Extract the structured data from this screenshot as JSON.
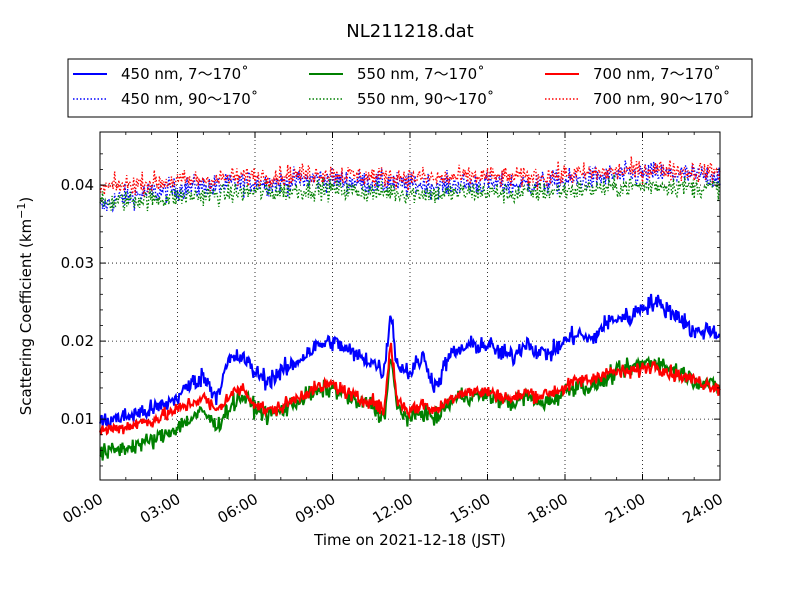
{
  "chart_data": {
    "type": "line",
    "title": "NL211218.dat",
    "xlabel": "Time on 2021-12-18 (JST)",
    "ylabel": "Scattering Coefficient (km",
    "ylabel_exponent": "−1",
    "ylabel_close": ")",
    "xlim": [
      "2021-12-18 00:00",
      "2021-12-19 00:00"
    ],
    "ylim": [
      0.0022,
      0.0468
    ],
    "x_ticks": [
      "00:00",
      "03:00",
      "06:00",
      "09:00",
      "12:00",
      "15:00",
      "18:00",
      "21:00",
      "24:00"
    ],
    "y_ticks": [
      "0.01",
      "0.02",
      "0.03",
      "0.04"
    ],
    "y_tick_values": [
      0.01,
      0.02,
      0.03,
      0.04
    ],
    "grid": true,
    "legend_position": "top, above plot",
    "x_hours": [
      0,
      0.5,
      1,
      1.5,
      2,
      2.5,
      3,
      3.5,
      4,
      4.5,
      5,
      5.5,
      6,
      6.5,
      7,
      7.5,
      8,
      8.5,
      9,
      9.5,
      10,
      10.5,
      11,
      11.25,
      11.5,
      12,
      12.5,
      13,
      13.5,
      14,
      14.5,
      15,
      15.5,
      16,
      16.5,
      17,
      17.5,
      18,
      18.5,
      19,
      19.5,
      20,
      20.5,
      21,
      21.5,
      22,
      22.5,
      23,
      23.5,
      24
    ],
    "series": [
      {
        "name": "450 nm, 7～170˚",
        "color": "#0000ff",
        "style": "solid",
        "noise": 0.0012,
        "values": [
          0.0095,
          0.01,
          0.0103,
          0.0108,
          0.0112,
          0.0118,
          0.0128,
          0.0145,
          0.0155,
          0.013,
          0.0175,
          0.018,
          0.016,
          0.015,
          0.016,
          0.017,
          0.0185,
          0.0195,
          0.02,
          0.019,
          0.018,
          0.0175,
          0.016,
          0.024,
          0.017,
          0.016,
          0.018,
          0.014,
          0.018,
          0.019,
          0.0195,
          0.0195,
          0.0185,
          0.018,
          0.02,
          0.0185,
          0.0185,
          0.02,
          0.021,
          0.02,
          0.022,
          0.023,
          0.023,
          0.0245,
          0.025,
          0.024,
          0.023,
          0.021,
          0.0215,
          0.021
        ]
      },
      {
        "name": "450 nm, 90～170˚",
        "color": "#0000ff",
        "style": "dotted",
        "noise": 0.0015,
        "values": [
          0.037,
          0.038,
          0.0385,
          0.0388,
          0.039,
          0.0392,
          0.0395,
          0.0397,
          0.0398,
          0.0398,
          0.04,
          0.0402,
          0.0405,
          0.0402,
          0.0403,
          0.0405,
          0.0407,
          0.0408,
          0.0406,
          0.0405,
          0.0404,
          0.0403,
          0.0402,
          0.0405,
          0.0401,
          0.04,
          0.0401,
          0.0399,
          0.04,
          0.0401,
          0.0402,
          0.0402,
          0.0401,
          0.04,
          0.0401,
          0.0402,
          0.0403,
          0.0405,
          0.0407,
          0.0408,
          0.041,
          0.0412,
          0.0413,
          0.0414,
          0.0415,
          0.0414,
          0.0413,
          0.0412,
          0.0412,
          0.0412
        ]
      },
      {
        "name": "550 nm, 7～170˚",
        "color": "#008000",
        "style": "solid",
        "noise": 0.0011,
        "values": [
          0.0055,
          0.006,
          0.0063,
          0.0068,
          0.0072,
          0.008,
          0.009,
          0.01,
          0.011,
          0.009,
          0.0115,
          0.013,
          0.0115,
          0.0105,
          0.011,
          0.012,
          0.013,
          0.0135,
          0.014,
          0.013,
          0.012,
          0.012,
          0.01,
          0.018,
          0.0115,
          0.01,
          0.011,
          0.01,
          0.012,
          0.013,
          0.013,
          0.013,
          0.0125,
          0.012,
          0.013,
          0.012,
          0.0125,
          0.0135,
          0.0145,
          0.014,
          0.015,
          0.016,
          0.0165,
          0.0172,
          0.0175,
          0.0165,
          0.016,
          0.015,
          0.0145,
          0.014
        ]
      },
      {
        "name": "550 nm, 90～170˚",
        "color": "#008000",
        "style": "dotted",
        "noise": 0.0013,
        "values": [
          0.0375,
          0.0378,
          0.038,
          0.0382,
          0.0382,
          0.0383,
          0.0385,
          0.0386,
          0.0387,
          0.0387,
          0.0389,
          0.039,
          0.0392,
          0.0391,
          0.0392,
          0.0393,
          0.0394,
          0.0395,
          0.0394,
          0.0393,
          0.0392,
          0.0391,
          0.039,
          0.0392,
          0.039,
          0.0389,
          0.039,
          0.0388,
          0.0389,
          0.039,
          0.0391,
          0.0391,
          0.039,
          0.0389,
          0.039,
          0.0391,
          0.0392,
          0.0393,
          0.0394,
          0.0395,
          0.0396,
          0.0397,
          0.0398,
          0.0399,
          0.04,
          0.0399,
          0.0398,
          0.0397,
          0.0397,
          0.0397
        ]
      },
      {
        "name": "700 nm, 7～170˚",
        "color": "#ff0000",
        "style": "solid",
        "noise": 0.0009,
        "values": [
          0.0085,
          0.0088,
          0.009,
          0.0095,
          0.0098,
          0.0105,
          0.0112,
          0.012,
          0.0128,
          0.011,
          0.013,
          0.014,
          0.012,
          0.011,
          0.0115,
          0.0125,
          0.0135,
          0.014,
          0.0145,
          0.0135,
          0.0125,
          0.0125,
          0.011,
          0.02,
          0.0125,
          0.011,
          0.012,
          0.011,
          0.0125,
          0.0135,
          0.0135,
          0.0135,
          0.013,
          0.0125,
          0.0135,
          0.013,
          0.0135,
          0.014,
          0.015,
          0.015,
          0.016,
          0.016,
          0.016,
          0.0165,
          0.017,
          0.016,
          0.0155,
          0.015,
          0.0145,
          0.014
        ]
      },
      {
        "name": "700 nm, 90～170˚",
        "color": "#ff0000",
        "style": "dotted",
        "noise": 0.0013,
        "values": [
          0.0395,
          0.0398,
          0.04,
          0.0402,
          0.0403,
          0.0404,
          0.0405,
          0.0406,
          0.0407,
          0.0407,
          0.0409,
          0.041,
          0.0412,
          0.0411,
          0.0412,
          0.0413,
          0.0414,
          0.0415,
          0.0414,
          0.0413,
          0.0412,
          0.0411,
          0.041,
          0.0412,
          0.041,
          0.0409,
          0.041,
          0.0408,
          0.0409,
          0.041,
          0.0411,
          0.0411,
          0.041,
          0.0409,
          0.041,
          0.0411,
          0.0412,
          0.0413,
          0.0414,
          0.0415,
          0.0416,
          0.0417,
          0.0418,
          0.0419,
          0.042,
          0.0419,
          0.0418,
          0.0417,
          0.0417,
          0.0417
        ]
      }
    ]
  }
}
